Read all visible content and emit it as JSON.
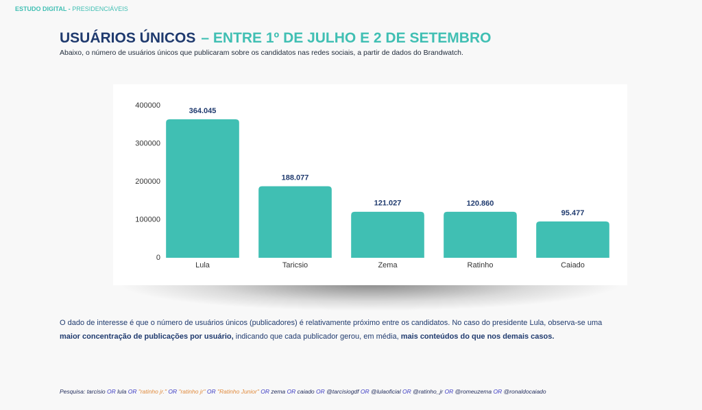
{
  "header": {
    "label": "ESTUDO DIGITAL -",
    "section": "PRESIDENCIÁVEIS"
  },
  "title": {
    "main": "USUÁRIOS ÚNICOS",
    "range": "– ENTRE 1º DE JULHO E 2 DE SETEMBRO"
  },
  "subtitle": "Abaixo, o número de usuários únicos que publicaram sobre os candidatos nas redes sociais, a partir de dados do Brandwatch.",
  "chart_data": {
    "type": "bar",
    "categories": [
      "Lula",
      "Taricsio",
      "Zema",
      "Ratinho",
      "Caiado"
    ],
    "values": [
      364045,
      188077,
      121027,
      120860,
      95477
    ],
    "value_labels": [
      "364.045",
      "188.077",
      "121.027",
      "120.860",
      "95.477"
    ],
    "color": "#40bfb3",
    "ylim": [
      0,
      400000
    ],
    "yticks": [
      0,
      100000,
      200000,
      300000,
      400000
    ]
  },
  "body": {
    "segments": [
      {
        "text": "O dado de interesse é que o número de usuários únicos (publicadores) é relativamente próximo entre os candidatos. No caso do presidente Lula, observa-se uma ",
        "bold": false
      },
      {
        "text": "maior concentração de publicações por usuário,",
        "bold": true
      },
      {
        "text": " indicando que cada publicador gerou, em média, ",
        "bold": false
      },
      {
        "text": "mais conteúdos do que nos demais casos.",
        "bold": true
      }
    ]
  },
  "footer": {
    "segments": [
      {
        "text": "Pesquisa: tarcisio ",
        "color": "#1f2a5a"
      },
      {
        "text": "OR",
        "color": "#3d3dc4"
      },
      {
        "text": " lula ",
        "color": "#1f2a5a"
      },
      {
        "text": "OR",
        "color": "#3d3dc4"
      },
      {
        "text": " \"ratinho jr.\" ",
        "color": "#e08a3c"
      },
      {
        "text": "OR",
        "color": "#3d3dc4"
      },
      {
        "text": " \"ratinho jr\" ",
        "color": "#e08a3c"
      },
      {
        "text": "OR",
        "color": "#3d3dc4"
      },
      {
        "text": " \"Ratinho Junior\" ",
        "color": "#e08a3c"
      },
      {
        "text": "OR",
        "color": "#3d3dc4"
      },
      {
        "text": " zema ",
        "color": "#1f2a5a"
      },
      {
        "text": "OR",
        "color": "#3d3dc4"
      },
      {
        "text": " caiado ",
        "color": "#1f2a5a"
      },
      {
        "text": "OR",
        "color": "#3d3dc4"
      },
      {
        "text": " @tarcisiogdf ",
        "color": "#1f2a5a"
      },
      {
        "text": "OR",
        "color": "#3d3dc4"
      },
      {
        "text": " @lulaoficial ",
        "color": "#1f2a5a"
      },
      {
        "text": "OR",
        "color": "#3d3dc4"
      },
      {
        "text": " @ratinho_jr ",
        "color": "#1f2a5a"
      },
      {
        "text": "OR",
        "color": "#3d3dc4"
      },
      {
        "text": " @romeuzema ",
        "color": "#1f2a5a"
      },
      {
        "text": "OR",
        "color": "#3d3dc4"
      },
      {
        "text": " @ronaldocaiado",
        "color": "#1f2a5a"
      }
    ]
  }
}
